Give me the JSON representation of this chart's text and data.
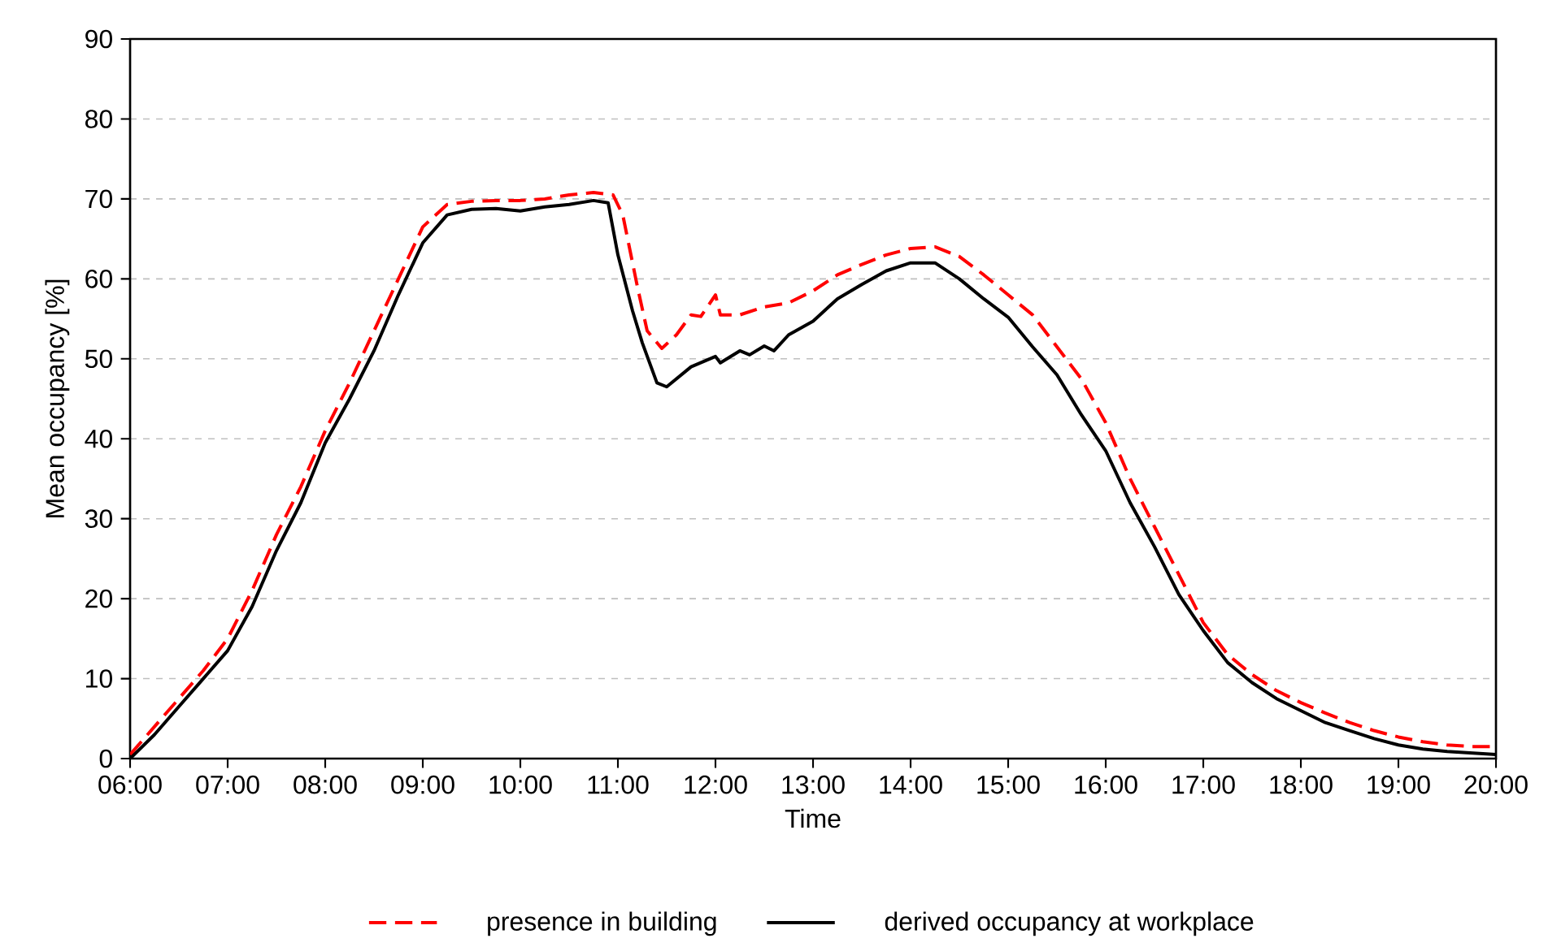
{
  "chart_data": {
    "type": "line",
    "xlabel": "Time",
    "ylabel": "Mean occupancy [%]",
    "xlim": [
      6,
      20
    ],
    "ylim": [
      0,
      90
    ],
    "xticks": [
      {
        "value": 6,
        "label": "06:00"
      },
      {
        "value": 7,
        "label": "07:00"
      },
      {
        "value": 8,
        "label": "08:00"
      },
      {
        "value": 9,
        "label": "09:00"
      },
      {
        "value": 10,
        "label": "10:00"
      },
      {
        "value": 11,
        "label": "11:00"
      },
      {
        "value": 12,
        "label": "12:00"
      },
      {
        "value": 13,
        "label": "13:00"
      },
      {
        "value": 14,
        "label": "14:00"
      },
      {
        "value": 15,
        "label": "15:00"
      },
      {
        "value": 16,
        "label": "16:00"
      },
      {
        "value": 17,
        "label": "17:00"
      },
      {
        "value": 18,
        "label": "18:00"
      },
      {
        "value": 19,
        "label": "19:00"
      },
      {
        "value": 20,
        "label": "20:00"
      }
    ],
    "yticks": [
      0,
      10,
      20,
      30,
      40,
      50,
      60,
      70,
      80,
      90
    ],
    "grid": "y",
    "legend": "bottom",
    "marker": "none",
    "series": [
      {
        "name": "presence in building",
        "color": "#ff0000",
        "line_style": "dashed",
        "x": [
          6,
          6.25,
          6.5,
          6.75,
          7,
          7.25,
          7.5,
          7.75,
          8,
          8.25,
          8.5,
          8.75,
          9,
          9.25,
          9.5,
          9.75,
          10,
          10.25,
          10.5,
          10.75,
          10.95,
          11.05,
          11.2,
          11.3,
          11.45,
          11.6,
          11.75,
          11.85,
          12,
          12.05,
          12.25,
          12.5,
          12.75,
          13,
          13.25,
          13.5,
          13.75,
          14,
          14.25,
          14.5,
          14.75,
          15,
          15.25,
          15.5,
          15.75,
          16,
          16.25,
          16.5,
          16.75,
          17,
          17.25,
          17.5,
          17.75,
          18,
          18.25,
          18.5,
          18.75,
          19,
          19.25,
          19.5,
          19.75,
          20
        ],
        "values": [
          0.5,
          4,
          7.5,
          11,
          15,
          21,
          28,
          34,
          41,
          47,
          53.5,
          60,
          66.5,
          69.3,
          69.7,
          69.8,
          69.8,
          70,
          70.5,
          70.8,
          70.5,
          68,
          59,
          53.5,
          51.3,
          53,
          55.5,
          55.3,
          58,
          55.5,
          55.5,
          56.5,
          57,
          58.5,
          60.5,
          61.8,
          63,
          63.8,
          64,
          62.8,
          60.5,
          58,
          55.5,
          51.5,
          47.5,
          42,
          35,
          29,
          23,
          17,
          13,
          10.5,
          8.5,
          7,
          5.7,
          4.5,
          3.5,
          2.7,
          2.1,
          1.7,
          1.5,
          1.5
        ]
      },
      {
        "name": "derived occupancy at workplace",
        "color": "#000000",
        "line_style": "solid",
        "x": [
          6,
          6.25,
          6.5,
          6.75,
          7,
          7.25,
          7.5,
          7.75,
          8,
          8.25,
          8.5,
          8.75,
          9,
          9.25,
          9.5,
          9.75,
          10,
          10.25,
          10.5,
          10.75,
          10.9,
          11,
          11.15,
          11.25,
          11.4,
          11.5,
          11.75,
          12,
          12.05,
          12.25,
          12.35,
          12.5,
          12.6,
          12.75,
          13,
          13.25,
          13.5,
          13.75,
          14,
          14.25,
          14.5,
          14.75,
          15,
          15.25,
          15.5,
          15.75,
          16,
          16.25,
          16.5,
          16.75,
          17,
          17.25,
          17.5,
          17.75,
          18,
          18.25,
          18.5,
          18.75,
          19,
          19.25,
          19.5,
          19.75,
          20
        ],
        "values": [
          0,
          3,
          6.5,
          10,
          13.5,
          19,
          26,
          32,
          39.5,
          45,
          51,
          58,
          64.5,
          68,
          68.7,
          68.8,
          68.5,
          69,
          69.3,
          69.8,
          69.5,
          63,
          56,
          52,
          47,
          46.5,
          49,
          50.3,
          49.5,
          51,
          50.5,
          51.6,
          51,
          53,
          54.7,
          57.5,
          59.3,
          61,
          62,
          62,
          60,
          57.5,
          55.2,
          51.5,
          48,
          43,
          38.5,
          32,
          26.5,
          20.5,
          16,
          12,
          9.5,
          7.5,
          6,
          4.5,
          3.5,
          2.5,
          1.7,
          1.2,
          0.9,
          0.7,
          0.5
        ]
      }
    ]
  }
}
